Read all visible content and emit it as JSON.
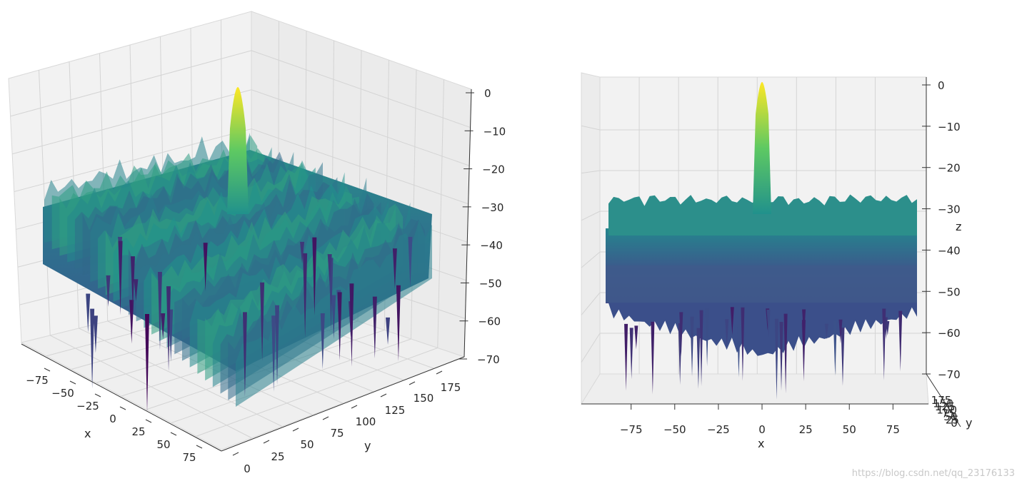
{
  "chart_data": [
    {
      "type": "surface",
      "view": "perspective",
      "xlabel": "x",
      "ylabel": "y",
      "zlabel": "",
      "x_ticks": [
        "−75",
        "−50",
        "−25",
        "0",
        "25",
        "50",
        "75"
      ],
      "y_ticks": [
        "0",
        "25",
        "50",
        "75",
        "100",
        "125",
        "150",
        "175"
      ],
      "z_ticks": [
        "0",
        "−10",
        "−20",
        "−30",
        "−40",
        "−50",
        "−60",
        "−70"
      ],
      "xlim": [
        -90,
        90
      ],
      "ylim": [
        0,
        180
      ],
      "zlim": [
        -70,
        0
      ],
      "peak": {
        "x": 0,
        "y": 90,
        "z": 0
      },
      "colormap": "viridis",
      "grid": true
    },
    {
      "type": "surface",
      "view": "front",
      "xlabel": "x",
      "ylabel": "y",
      "zlabel": "z",
      "x_ticks": [
        "−75",
        "−50",
        "−25",
        "0",
        "25",
        "50",
        "75"
      ],
      "y_ticks": [
        "0",
        "25",
        "50",
        "75",
        "100",
        "125",
        "150",
        "175"
      ],
      "z_ticks": [
        "0",
        "−10",
        "−20",
        "−30",
        "−40",
        "−50",
        "−60",
        "−70"
      ],
      "xlim": [
        -90,
        90
      ],
      "zlim": [
        -70,
        0
      ],
      "peak": {
        "x": 0,
        "z": 0
      },
      "colormap": "viridis",
      "grid": true
    }
  ],
  "watermark": "https://blog.csdn.net/qq_23176133",
  "colors": {
    "pane": "#f2f2f2",
    "grid": "#cfcfcf",
    "viridis_low": "#440154",
    "viridis_mid1": "#3b528b",
    "viridis_mid2": "#21918c",
    "viridis_mid3": "#5ec962",
    "viridis_high": "#fde725"
  }
}
